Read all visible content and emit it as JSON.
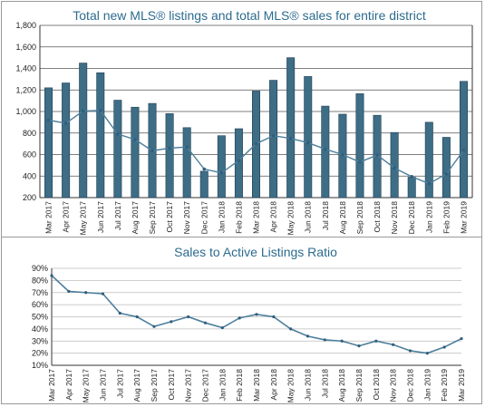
{
  "chart_data": [
    {
      "type": "bar",
      "title": "Total new MLS® listings and total MLS® sales for entire district",
      "categories": [
        "Mar 2017",
        "Apr 2017",
        "May 2017",
        "Jun 2017",
        "Jul 2017",
        "Aug 2017",
        "Sep 2017",
        "Oct 2017",
        "Nov 2017",
        "Dec 2017",
        "Jan 2018",
        "Feb 2018",
        "Mar 2018",
        "Apr 2018",
        "May 2018",
        "Jun 2018",
        "Jul 2018",
        "Aug 2018",
        "Sep 2018",
        "Oct 2018",
        "Nov 2018",
        "Dec 2018",
        "Jan 2019",
        "Feb 2019",
        "Mar 2019"
      ],
      "series": [
        {
          "type": "bar",
          "values": [
            1220,
            1265,
            1450,
            1360,
            1105,
            1040,
            1075,
            980,
            850,
            445,
            775,
            840,
            1190,
            1290,
            1500,
            1325,
            1050,
            975,
            1165,
            965,
            805,
            390,
            900,
            760,
            1280
          ]
        },
        {
          "type": "line",
          "values": [
            920,
            890,
            1005,
            1010,
            790,
            740,
            635,
            660,
            670,
            465,
            430,
            545,
            700,
            775,
            750,
            710,
            650,
            600,
            530,
            595,
            475,
            395,
            330,
            420,
            640
          ]
        }
      ],
      "ylim": [
        200,
        1800
      ],
      "yticks": [
        "200",
        "400",
        "600",
        "800",
        "1,000",
        "1,200",
        "1,400",
        "1,600",
        "1,800"
      ],
      "grid": true,
      "colors": {
        "bar": "#3e6d86",
        "line": "#4d7f9c",
        "grid": "#555555",
        "title": "#2c6b8f"
      }
    },
    {
      "type": "line",
      "title": "Sales to Active Listings Ratio",
      "categories": [
        "Mar 2017",
        "Apr 2017",
        "May 2017",
        "Jun 2017",
        "Jul 2017",
        "Aug 2017",
        "Sep 2017",
        "Oct 2017",
        "Nov 2017",
        "Dec 2017",
        "Jan 2018",
        "Feb 2018",
        "Mar 2018",
        "Apr 2018",
        "May 2018",
        "Jun 2018",
        "Jul 2018",
        "Aug 2018",
        "Sep 2018",
        "Oct 2018",
        "Nov 2018",
        "Dec 2018",
        "Jan 2019",
        "Feb 2019",
        "Mar 2019"
      ],
      "series": [
        {
          "type": "line",
          "values": [
            84,
            71,
            70,
            69,
            53,
            50,
            42,
            46,
            50,
            45,
            41,
            49,
            52,
            50,
            40,
            34,
            31,
            30,
            26,
            30,
            27,
            22,
            20,
            25,
            32
          ]
        }
      ],
      "ylim": [
        10,
        90
      ],
      "yticks": [
        "10%",
        "20%",
        "30%",
        "40%",
        "50%",
        "60%",
        "70%",
        "80%",
        "90%"
      ],
      "grid": true,
      "colors": {
        "line": "#4d7f9c",
        "grid": "#bdbdbd",
        "title": "#2c6b8f"
      }
    }
  ]
}
